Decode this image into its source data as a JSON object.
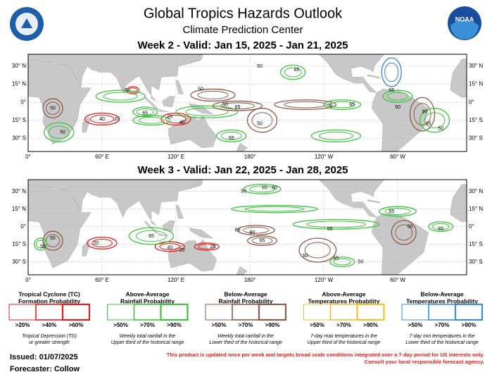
{
  "header": {
    "title": "Global Tropics Hazards Outlook",
    "subtitle": "Climate Prediction Center",
    "noaa_logo": "NOAA"
  },
  "maps": [
    {
      "title": "Week 2 - Valid: Jan 15, 2025 - Jan 21, 2025",
      "lat_labels": [
        "30° N",
        "15° N",
        "0°",
        "15° S",
        "30° S"
      ],
      "lon_labels": [
        "0°",
        "60° E",
        "120° E",
        "180°",
        "120° W",
        "60° W"
      ],
      "contour_labels": [
        "20",
        "40",
        "20",
        "65",
        "20",
        "40",
        "65",
        "50",
        "50",
        "50",
        "65",
        "50",
        "65",
        "50",
        "65",
        "65",
        "50",
        "80",
        "65",
        "50",
        "50",
        "50"
      ]
    },
    {
      "title": "Week 3 - Valid: Jan 22, 2025 - Jan 28, 2025",
      "lat_labels": [
        "30° N",
        "15° N",
        "0°",
        "15° S",
        "30° S"
      ],
      "lon_labels": [
        "0°",
        "60° E",
        "120° E",
        "180°",
        "120° W",
        "60° W"
      ],
      "contour_labels": [
        "65",
        "40",
        "20",
        "20",
        "20",
        "50",
        "65",
        "80",
        "80",
        "65",
        "65",
        "65",
        "50",
        "50",
        "65",
        "50",
        "65",
        "65",
        "50",
        "65"
      ]
    }
  ],
  "legend": [
    {
      "title_lines": [
        "Tropical Cyclone (TC)",
        "Formation Probability"
      ],
      "levels": [
        ">20%",
        ">40%",
        ">60%"
      ],
      "note_lines": [
        "Tropical Depression (TD)",
        "or greater strength"
      ]
    },
    {
      "title_lines": [
        "Above-Average",
        "Rainfall Probability"
      ],
      "levels": [
        ">50%",
        ">70%",
        ">90%"
      ],
      "note_lines": [
        "Weekly total rainfall in the",
        "Upper third of the historical range"
      ]
    },
    {
      "title_lines": [
        "Below-Average",
        "Rainfall Probability"
      ],
      "levels": [
        ">50%",
        ">70%",
        ">90%"
      ],
      "note_lines": [
        "Weekly total rainfall in the",
        "Lower third of the historical range"
      ]
    },
    {
      "title_lines": [
        "Above-Average",
        "Temperatures Probability"
      ],
      "levels": [
        ">50%",
        ">70%",
        ">90%"
      ],
      "note_lines": [
        "7-day max temperatures in the",
        "Upper third of the historical range"
      ]
    },
    {
      "title_lines": [
        "Below-Average",
        "Temperatures Probability"
      ],
      "levels": [
        ">50%",
        ">70%",
        ">90%"
      ],
      "note_lines": [
        "7-day min temperatures in the",
        "Lower third of the historical range"
      ]
    }
  ],
  "footer": {
    "issued": "Issued: 01/07/2025",
    "forecaster": "Forecaster: Collow",
    "notice_lines": [
      "This product is updated once per week and targets broad scale conditions integrated over a 7-day period for US interests only.",
      "Consult your local responsible forecast agency."
    ]
  }
}
